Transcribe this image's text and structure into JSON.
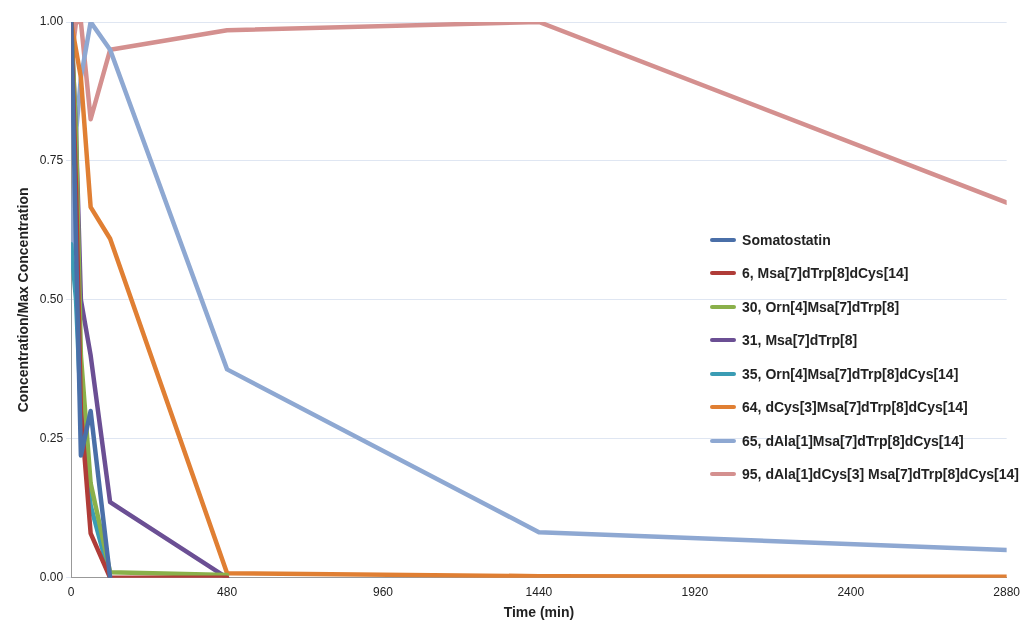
{
  "chart_data": {
    "type": "line",
    "xlabel": "Time (min)",
    "ylabel": "Concentration/Max Concentration",
    "x": [
      0,
      15,
      30,
      60,
      120,
      480,
      1440,
      2880
    ],
    "xlim": [
      0,
      2880
    ],
    "xticks": [
      0,
      480,
      960,
      1440,
      1920,
      2400,
      2880
    ],
    "ylim": [
      0,
      1
    ],
    "yticks": [
      {
        "value": 0,
        "label": "0.00"
      },
      {
        "value": 0.25,
        "label": "0.25"
      },
      {
        "value": 0.5,
        "label": "0.50"
      },
      {
        "value": 0.75,
        "label": "0.75"
      },
      {
        "value": 1,
        "label": "1.00"
      }
    ],
    "grid": "y",
    "legend": "right",
    "marker": "none",
    "line_style": "solid",
    "series": [
      {
        "name": "Somatostatin",
        "color": "#4a6fa8",
        "values": [
          1,
          0.6,
          0.22,
          0.3,
          0,
          null,
          null,
          null
        ]
      },
      {
        "name": "6, Msa[7]dTrp[8]dCys[14]",
        "color": "#b03c38",
        "values": [
          1,
          0.7,
          0.3,
          0.08,
          0,
          0,
          null,
          null
        ]
      },
      {
        "name": "30, Orn[4]Msa[7]dTrp[8]",
        "color": "#8ab04a",
        "values": [
          1,
          0.8,
          0.4,
          0.17,
          0.01,
          0.005,
          null,
          null
        ]
      },
      {
        "name": "31, Msa[7]dTrp[8]",
        "color": "#6b4f94",
        "values": [
          1,
          0.8,
          0.5,
          0.4,
          0.136,
          0,
          null,
          null
        ]
      },
      {
        "name": "35, Orn[4]Msa[7]dTrp[8]dCys[14]",
        "color": "#3a9cb4",
        "values": [
          0.6,
          0.5,
          0.3,
          0.13,
          0,
          null,
          null,
          null
        ]
      },
      {
        "name": "64, dCys[3]Msa[7]dTrp[8]dCys[14]",
        "color": "#e07f33",
        "values": [
          1,
          0.95,
          0.9,
          0.667,
          0.61,
          0.008,
          0.003,
          0.002
        ]
      },
      {
        "name": "65, dAla[1]Msa[7]dTrp[8]dCys[14]",
        "color": "#8ea8d2",
        "values": [
          0.56,
          0.8,
          0.9,
          1,
          0.95,
          0.375,
          0.082,
          0.05
        ]
      },
      {
        "name": "95, dAla[1]dCys[3] Msa[7]dTrp[8]dCys[14]",
        "color": "#d4908f",
        "values": [
          0.93,
          1,
          1,
          0.825,
          0.95,
          0.985,
          1,
          0.675
        ]
      }
    ]
  }
}
